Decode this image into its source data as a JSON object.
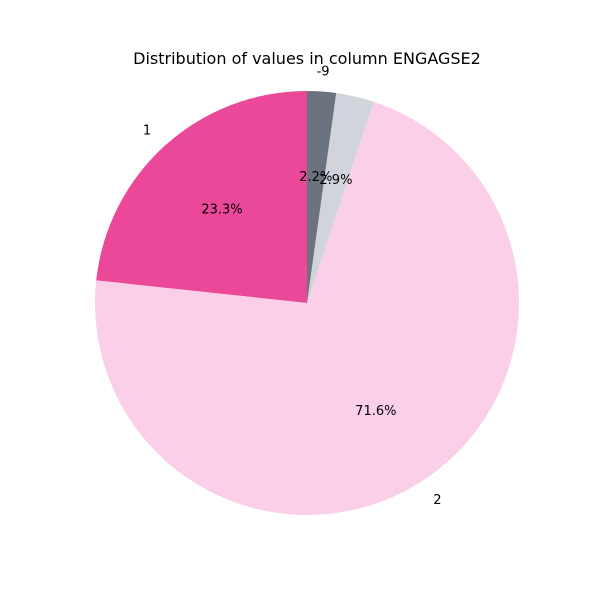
{
  "chart_data": {
    "type": "pie",
    "title": "Distribution of values in column ENGAGSE2",
    "start_angle_deg": 90,
    "direction": "counterclockwise",
    "slices": [
      {
        "label": "1",
        "percent": 23.3,
        "pct_text": "23.3%",
        "color": "#ec4899"
      },
      {
        "label": "2",
        "percent": 71.6,
        "pct_text": "71.6%",
        "color": "#fbcfe8"
      },
      {
        "label": "",
        "percent": 2.9,
        "pct_text": "2.9%",
        "color": "#d1d5db"
      },
      {
        "label": "-9",
        "percent": 2.2,
        "pct_text": "2.2%",
        "color": "#6b7280"
      }
    ]
  }
}
